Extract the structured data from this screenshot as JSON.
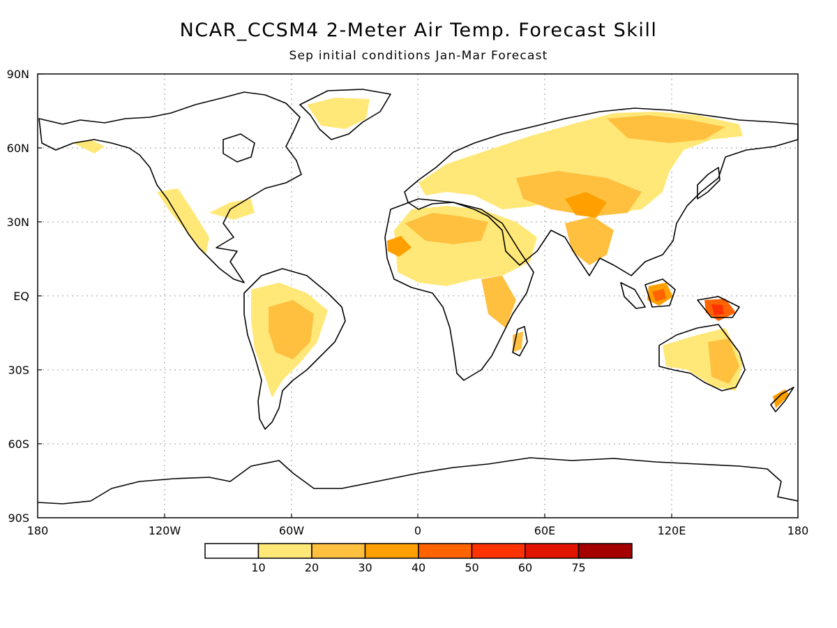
{
  "title": "NCAR_CCSM4 2-Meter Air Temp. Forecast Skill",
  "subtitle": "Sep initial conditions  Jan-Mar Forecast",
  "lat_labels": [
    "90N",
    "60N",
    "30N",
    "EQ",
    "30S",
    "60S",
    "90S"
  ],
  "lon_labels": [
    "180",
    "120W",
    "60W",
    "0",
    "60E",
    "120E",
    "180"
  ],
  "colorbar": {
    "labels": [
      "10",
      "20",
      "30",
      "40",
      "50",
      "60",
      "75"
    ],
    "colors": [
      "#ffffff",
      "#ffe878",
      "#ffc040",
      "#ffa000",
      "#ff6400",
      "#ff3200",
      "#e11400",
      "#a50000"
    ]
  },
  "colors": {
    "light": "#ffe878",
    "mid": "#ffc040",
    "orange": "#ffa000",
    "dark_orange": "#ff6400",
    "red": "#ff3200"
  }
}
